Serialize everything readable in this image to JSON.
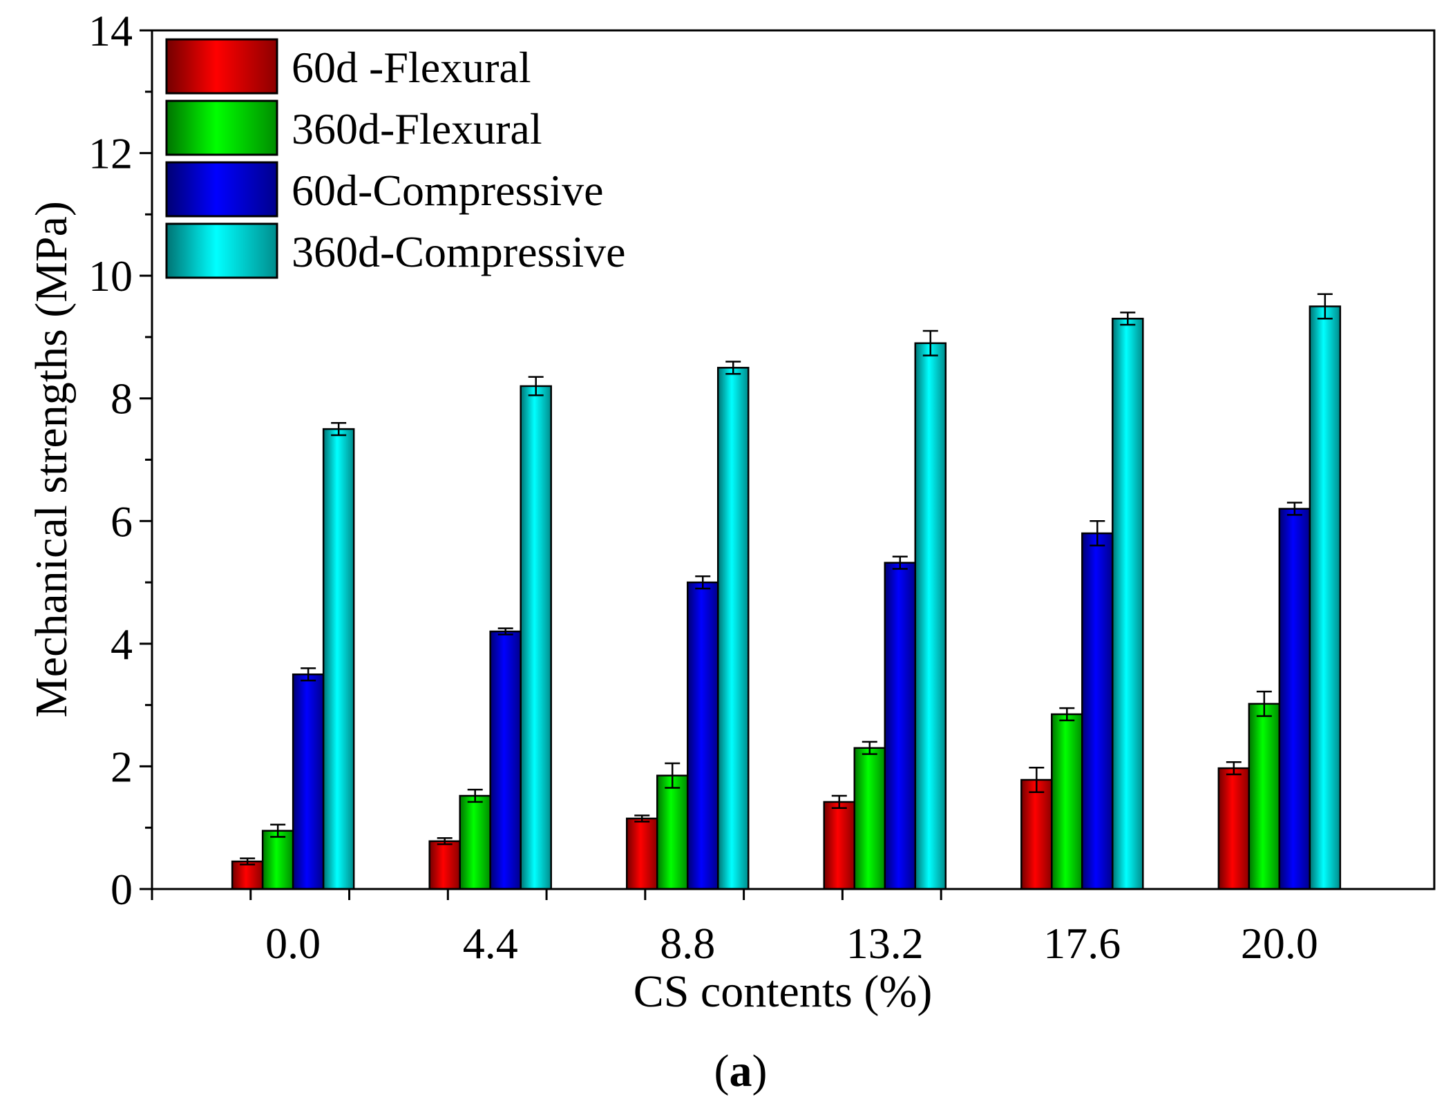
{
  "chart_data": {
    "type": "bar",
    "xlabel": "CS contents (%)",
    "ylabel": "Mechanical strengths (MPa)",
    "panel_label_open": "(",
    "panel_label_letter": "a",
    "panel_label_close": ")",
    "categories": [
      "0.0",
      "4.4",
      "8.8",
      "13.2",
      "17.6",
      "20.0"
    ],
    "ylim": [
      0,
      14
    ],
    "yticks": [
      "0",
      "2",
      "4",
      "6",
      "8",
      "10",
      "12",
      "14"
    ],
    "legend_position": "top-left",
    "grid": false,
    "series": [
      {
        "name": "60d -Flexural",
        "color": "#ff0000",
        "values": [
          0.45,
          0.78,
          1.15,
          1.42,
          1.78,
          1.97
        ],
        "errors": [
          0.05,
          0.05,
          0.05,
          0.1,
          0.2,
          0.1
        ]
      },
      {
        "name": "360d-Flexural",
        "color": "#00ff00",
        "values": [
          0.95,
          1.52,
          1.85,
          2.3,
          2.85,
          3.02
        ],
        "errors": [
          0.1,
          0.1,
          0.2,
          0.1,
          0.1,
          0.2
        ]
      },
      {
        "name": "60d-Compressive",
        "color": "#0000ff",
        "values": [
          3.5,
          4.2,
          5.0,
          5.32,
          5.8,
          6.2
        ],
        "errors": [
          0.1,
          0.05,
          0.1,
          0.1,
          0.2,
          0.1
        ]
      },
      {
        "name": "360d-Compressive",
        "color": "#00ffff",
        "values": [
          7.5,
          8.2,
          8.5,
          8.9,
          9.3,
          9.5
        ],
        "errors": [
          0.1,
          0.15,
          0.1,
          0.2,
          0.1,
          0.2
        ]
      }
    ]
  }
}
